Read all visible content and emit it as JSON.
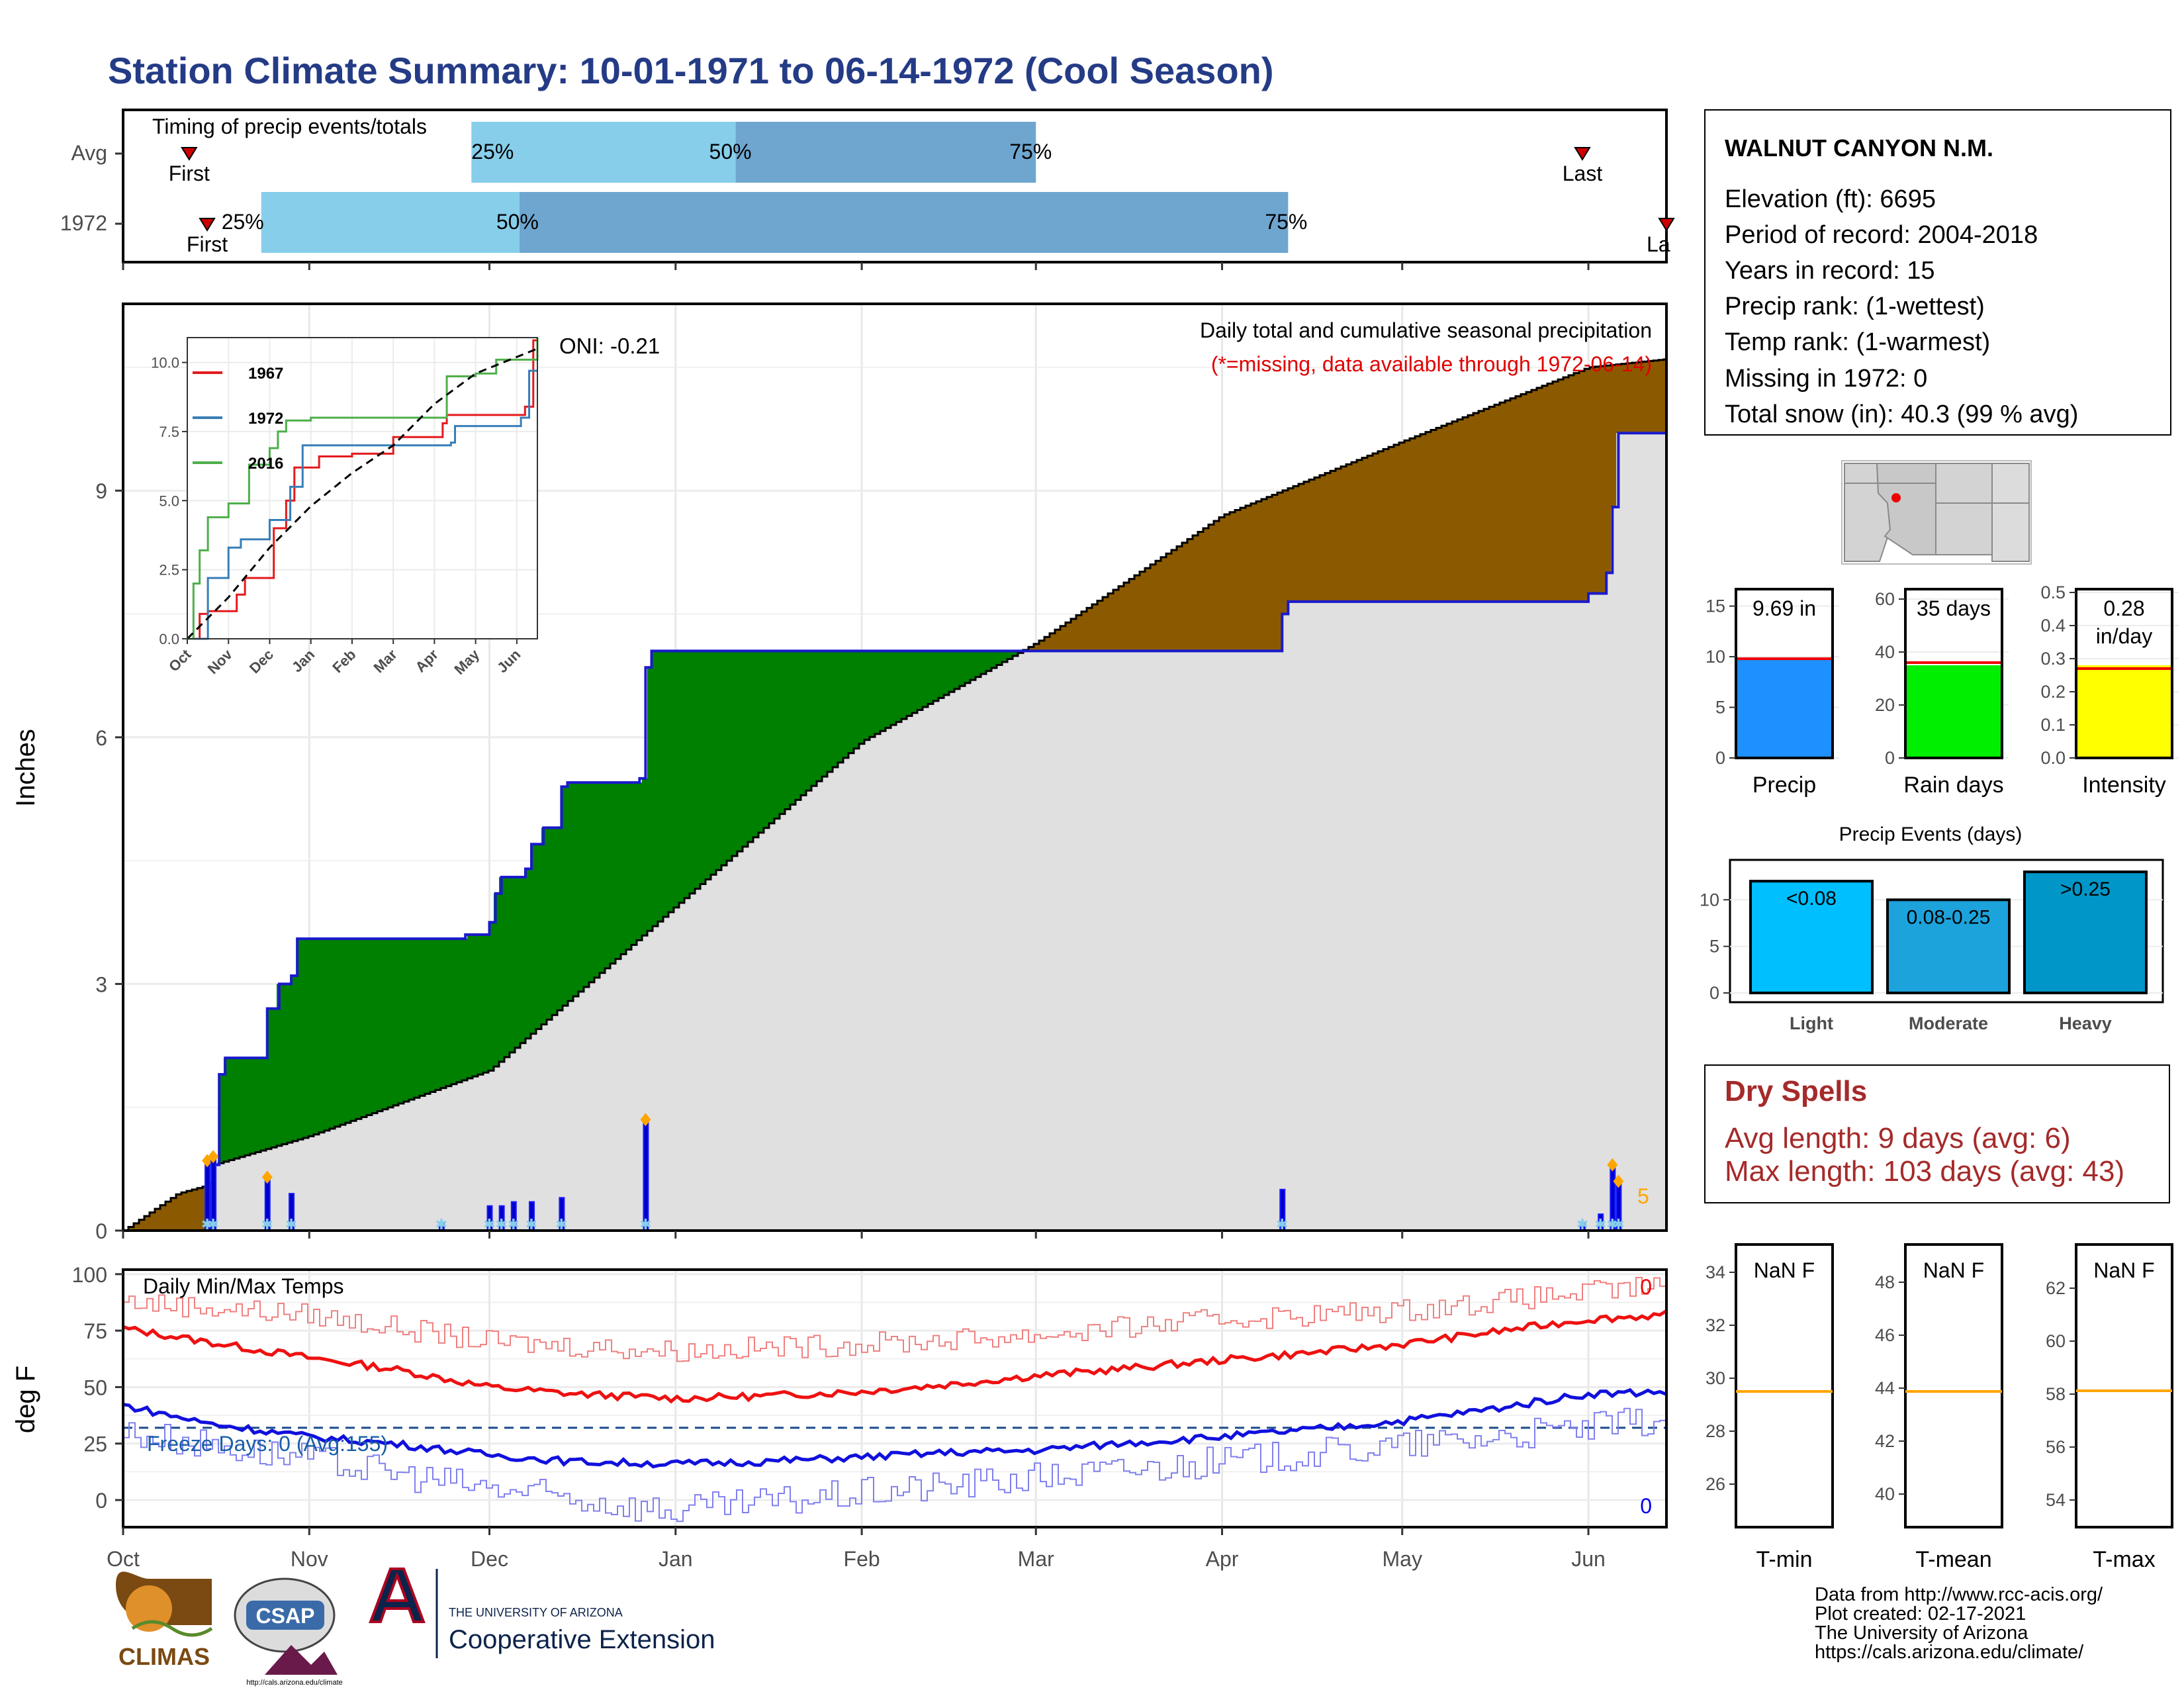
{
  "page": {
    "title": "Station Climate Summary: 10-01-1971 to 06-14-1972 (Cool Season)"
  },
  "timing": {
    "title": "Timing of precip events/totals",
    "rows": [
      {
        "label": "Avg",
        "first_date": "1971-10-12",
        "last_date": "1972-05-31",
        "p25": "1971-11-28",
        "p50": "1972-01-11",
        "p75": "1972-03-01"
      },
      {
        "label": "1972",
        "first_date": "1971-10-15",
        "last_date": "1972-06-14",
        "p25": "1971-10-24",
        "p50": "1971-12-06",
        "p75": "1972-04-12"
      }
    ],
    "first_label": "First",
    "last_label": "Last",
    "last_label_clipped": "La",
    "q_labels": [
      "25%",
      "50%",
      "75%"
    ],
    "colors": {
      "q1": "#87ceeb",
      "q2": "#6ea6cf",
      "marker": "#cc0000"
    }
  },
  "info": {
    "station": "WALNUT CANYON N.M.",
    "lines": [
      "Elevation (ft): 6695",
      "Period of record: 2004-2018",
      "Years in record: 15",
      "Precip rank:  (1-wettest)",
      "Temp rank:  (1-warmest)",
      "Missing in 1972: 0",
      "Total snow (in): 40.3 (99 % avg)"
    ]
  },
  "main_chart": {
    "ylabel": "Inches",
    "note": "Daily total and cumulative seasonal precipitation",
    "note_missing": "(*=missing, data available through 1972-06-14)",
    "oni": "ONI: -0.21",
    "badge": "5",
    "colors": {
      "above": "#008000",
      "below": "#8b5a00",
      "avg_fill": "#e0e0e0",
      "observed": "#1a1acc",
      "snow": "#87ceeb",
      "dot": "#ffa500"
    }
  },
  "inset": {
    "series": [
      {
        "name": "1967",
        "color": "#e41a1c"
      },
      {
        "name": "1972",
        "color": "#377eb8"
      },
      {
        "name": "2016",
        "color": "#4daf4a"
      }
    ],
    "yticks": [
      "0.0",
      "2.5",
      "5.0",
      "7.5",
      "10.0"
    ],
    "xticks": [
      "Oct",
      "Nov",
      "Dec",
      "Jan",
      "Feb",
      "Mar",
      "Apr",
      "May",
      "Jun"
    ]
  },
  "gauges": [
    {
      "label": "Precip",
      "value_text": "9.69 in",
      "color": "#1e90ff",
      "yticks": [
        "0",
        "5",
        "10",
        "15"
      ]
    },
    {
      "label": "Rain days",
      "value_text": "35 days",
      "color": "#00ee00",
      "yticks": [
        "0",
        "20",
        "40",
        "60"
      ]
    },
    {
      "label": "Intensity",
      "value_text": "0.28",
      "value_text2": "in/day",
      "color": "#ffff00",
      "yticks": [
        "0.0",
        "0.1",
        "0.2",
        "0.3",
        "0.4",
        "0.5"
      ]
    }
  ],
  "events": {
    "title": "Precip Events (days)",
    "bars": [
      {
        "label": "Light",
        "inner": "<0.08",
        "color": "#00bfff"
      },
      {
        "label": "Moderate",
        "inner": "0.08-0.25",
        "color": "#1ca3dc"
      },
      {
        "label": "Heavy",
        "inner": ">0.25",
        "color": "#0096c8"
      }
    ],
    "yticks": [
      "0",
      "5",
      "10"
    ]
  },
  "dry": {
    "title": "Dry Spells",
    "avg": "Avg length: 9 days (avg: 6)",
    "max": "Max length: 103 days (avg: 43)",
    "color": "#a52a2a"
  },
  "temp_chart": {
    "ylabel": "deg F",
    "title": "Daily Min/Max Temps",
    "freeze": "Freeze Days: 0 (Avg:155)",
    "count_top": "0",
    "count_bottom": "0",
    "yticks": [
      "0",
      "25",
      "50",
      "75",
      "100"
    ]
  },
  "xaxis": {
    "months": [
      "Oct",
      "Nov",
      "Dec",
      "Jan",
      "Feb",
      "Mar",
      "Apr",
      "May",
      "Jun"
    ]
  },
  "temp_boxes": [
    {
      "label": "T-min",
      "value_text": "NaN F",
      "yticks": [
        "26",
        "28",
        "30",
        "32",
        "34"
      ]
    },
    {
      "label": "T-mean",
      "value_text": "NaN F",
      "yticks": [
        "40",
        "42",
        "44",
        "46",
        "48"
      ]
    },
    {
      "label": "T-max",
      "value_text": "NaN F",
      "yticks": [
        "54",
        "56",
        "58",
        "60",
        "62"
      ]
    }
  ],
  "footer": {
    "lines": [
      "Data from http://www.rcc-acis.org/",
      "Plot created: 02-17-2021",
      "The University of Arizona",
      "https://cals.arizona.edu/climate/"
    ]
  },
  "logos": {
    "climas": "CLIMAS",
    "csap": "CSAP",
    "csap_url": "http://cals.arizona.edu/climate",
    "ua_line1": "THE UNIVERSITY OF ARIZONA",
    "ua_line2": "Cooperative Extension"
  },
  "chart_data": [
    {
      "type": "area",
      "title": "Daily total and cumulative seasonal precipitation",
      "ylabel": "Inches",
      "x_range": [
        "1971-10-01",
        "1972-06-14"
      ],
      "ylim": [
        0,
        11.3
      ],
      "yticks": [
        0,
        3,
        6,
        9
      ],
      "series": [
        {
          "name": "1972",
          "points": [
            [
              "1971-10-01",
              0.0
            ],
            [
              "1971-10-16",
              0.8
            ],
            [
              "1971-10-17",
              1.9
            ],
            [
              "1971-10-18",
              2.1
            ],
            [
              "1971-10-24",
              2.1
            ],
            [
              "1971-10-25",
              2.7
            ],
            [
              "1971-10-27",
              3.0
            ],
            [
              "1971-10-29",
              3.1
            ],
            [
              "1971-10-30",
              3.55
            ],
            [
              "1971-11-27",
              3.6
            ],
            [
              "1971-12-01",
              3.75
            ],
            [
              "1971-12-02",
              4.1
            ],
            [
              "1971-12-03",
              4.3
            ],
            [
              "1971-12-07",
              4.4
            ],
            [
              "1971-12-08",
              4.7
            ],
            [
              "1971-12-10",
              4.9
            ],
            [
              "1971-12-13",
              5.4
            ],
            [
              "1971-12-14",
              5.45
            ],
            [
              "1971-12-26",
              5.5
            ],
            [
              "1971-12-27",
              6.85
            ],
            [
              "1971-12-28",
              7.05
            ],
            [
              "1972-03-07",
              7.05
            ],
            [
              "1972-04-10",
              7.05
            ],
            [
              "1972-04-11",
              7.5
            ],
            [
              "1972-04-12",
              7.65
            ],
            [
              "1972-05-30",
              7.65
            ],
            [
              "1972-06-01",
              7.75
            ],
            [
              "1972-06-04",
              8.0
            ],
            [
              "1972-06-05",
              8.8
            ],
            [
              "1972-06-06",
              9.7
            ],
            [
              "1972-06-14",
              9.7
            ]
          ]
        },
        {
          "name": "Average",
          "points": [
            [
              "1971-10-01",
              0.0
            ],
            [
              "1971-10-05",
              0.2
            ],
            [
              "1971-10-10",
              0.45
            ],
            [
              "1971-10-15",
              0.55
            ],
            [
              "1971-10-16",
              0.8
            ],
            [
              "1971-11-01",
              1.15
            ],
            [
              "1971-12-01",
              1.95
            ],
            [
              "1972-01-01",
              3.95
            ],
            [
              "1972-02-01",
              5.95
            ],
            [
              "1972-03-01",
              7.15
            ],
            [
              "1972-04-01",
              8.7
            ],
            [
              "1972-05-01",
              9.6
            ],
            [
              "1972-06-01",
              10.5
            ],
            [
              "1972-06-14",
              10.6
            ]
          ]
        }
      ],
      "daily_precip": [
        {
          "date": "1971-10-15",
          "value": 0.85
        },
        {
          "date": "1971-10-16",
          "value": 0.9
        },
        {
          "date": "1971-10-25",
          "value": 0.65
        },
        {
          "date": "1971-10-29",
          "value": 0.45
        },
        {
          "date": "1971-11-23",
          "value": 0.1
        },
        {
          "date": "1971-12-01",
          "value": 0.3
        },
        {
          "date": "1971-12-03",
          "value": 0.3
        },
        {
          "date": "1971-12-05",
          "value": 0.35
        },
        {
          "date": "1971-12-08",
          "value": 0.35
        },
        {
          "date": "1971-12-13",
          "value": 0.4
        },
        {
          "date": "1971-12-27",
          "value": 1.35
        },
        {
          "date": "1972-04-11",
          "value": 0.5
        },
        {
          "date": "1972-05-31",
          "value": 0.1
        },
        {
          "date": "1972-06-03",
          "value": 0.2
        },
        {
          "date": "1972-06-05",
          "value": 0.8
        },
        {
          "date": "1972-06-06",
          "value": 0.6
        }
      ]
    },
    {
      "type": "line",
      "title": "",
      "xlabel": "",
      "ylabel": "",
      "ylim": [
        0,
        10.9
      ],
      "x_range": [
        "Oct",
        "Jun"
      ],
      "series": [
        {
          "name": "1967",
          "points": [
            [
              0,
              0
            ],
            [
              0.3,
              0.9
            ],
            [
              0.5,
              1.0
            ],
            [
              1.1,
              1.0
            ],
            [
              1.2,
              1.6
            ],
            [
              1.4,
              2.2
            ],
            [
              2.0,
              2.2
            ],
            [
              2.1,
              4.0
            ],
            [
              2.4,
              5.0
            ],
            [
              2.6,
              6.2
            ],
            [
              3.2,
              6.6
            ],
            [
              4.0,
              6.7
            ],
            [
              5.0,
              7.3
            ],
            [
              6.2,
              7.8
            ],
            [
              6.3,
              8.1
            ],
            [
              8.0,
              8.1
            ],
            [
              8.2,
              8.4
            ],
            [
              8.4,
              10.8
            ],
            [
              8.5,
              10.9
            ]
          ]
        },
        {
          "name": "1972",
          "points": [
            [
              0,
              0
            ],
            [
              0.5,
              2.2
            ],
            [
              1.0,
              3.3
            ],
            [
              1.3,
              3.6
            ],
            [
              2.0,
              4.3
            ],
            [
              2.5,
              5.5
            ],
            [
              2.8,
              7.0
            ],
            [
              5.0,
              7.0
            ],
            [
              6.4,
              7.1
            ],
            [
              6.5,
              7.7
            ],
            [
              8.0,
              7.7
            ],
            [
              8.1,
              8.0
            ],
            [
              8.3,
              9.7
            ],
            [
              8.5,
              9.7
            ]
          ]
        },
        {
          "name": "2016",
          "points": [
            [
              0,
              0
            ],
            [
              0.15,
              2.0
            ],
            [
              0.3,
              3.2
            ],
            [
              0.5,
              4.4
            ],
            [
              1.0,
              4.9
            ],
            [
              1.5,
              6.3
            ],
            [
              2.0,
              6.9
            ],
            [
              2.2,
              7.5
            ],
            [
              2.4,
              7.9
            ],
            [
              3.0,
              8.0
            ],
            [
              5.0,
              8.0
            ],
            [
              6.3,
              9.5
            ],
            [
              7.0,
              9.6
            ],
            [
              7.5,
              10.1
            ],
            [
              8.5,
              10.9
            ]
          ]
        },
        {
          "name": "Average",
          "points": [
            [
              0,
              0
            ],
            [
              1,
              1.5
            ],
            [
              2,
              3.3
            ],
            [
              3,
              4.8
            ],
            [
              4,
              6.0
            ],
            [
              5,
              7.0
            ],
            [
              6,
              8.5
            ],
            [
              7,
              9.6
            ],
            [
              8,
              10.2
            ],
            [
              8.5,
              10.5
            ]
          ]
        }
      ]
    },
    {
      "type": "line",
      "title": "Daily Min/Max Temps",
      "ylabel": "deg F",
      "ylim": [
        -12,
        102
      ],
      "yticks": [
        0,
        25,
        50,
        75,
        100
      ],
      "freeze_line": 32,
      "series": [
        {
          "name": "Avg max",
          "points": [
            [
              "1971-10-01",
              76
            ],
            [
              "1971-10-15",
              70
            ],
            [
              "1971-11-01",
              63
            ],
            [
              "1971-11-15",
              58
            ],
            [
              "1971-12-01",
              50
            ],
            [
              "1971-12-15",
              47
            ],
            [
              "1972-01-01",
              45
            ],
            [
              "1972-01-15",
              46
            ],
            [
              "1972-02-01",
              48
            ],
            [
              "1972-02-15",
              51
            ],
            [
              "1972-03-01",
              55
            ],
            [
              "1972-03-15",
              58
            ],
            [
              "1972-04-01",
              62
            ],
            [
              "1972-04-15",
              65
            ],
            [
              "1972-05-01",
              69
            ],
            [
              "1972-05-15",
              74
            ],
            [
              "1972-06-01",
              80
            ],
            [
              "1972-06-14",
              82
            ]
          ]
        },
        {
          "name": "Avg min",
          "points": [
            [
              "1971-10-01",
              42
            ],
            [
              "1971-10-15",
              34
            ],
            [
              "1971-11-01",
              28
            ],
            [
              "1971-11-15",
              25
            ],
            [
              "1971-12-01",
              20
            ],
            [
              "1971-12-15",
              17
            ],
            [
              "1972-01-01",
              16
            ],
            [
              "1972-01-15",
              17
            ],
            [
              "1972-02-01",
              19
            ],
            [
              "1972-02-15",
              21
            ],
            [
              "1972-03-01",
              22
            ],
            [
              "1972-03-15",
              25
            ],
            [
              "1972-04-01",
              28
            ],
            [
              "1972-04-15",
              31
            ],
            [
              "1972-05-01",
              35
            ],
            [
              "1972-05-15",
              40
            ],
            [
              "1972-06-01",
              47
            ],
            [
              "1972-06-14",
              48
            ]
          ]
        },
        {
          "name": "Record max",
          "points": [
            [
              "1971-10-01",
              88
            ],
            [
              "1971-11-01",
              82
            ],
            [
              "1971-12-01",
              70
            ],
            [
              "1972-01-01",
              66
            ],
            [
              "1972-02-01",
              69
            ],
            [
              "1972-03-01",
              73
            ],
            [
              "1972-04-01",
              80
            ],
            [
              "1972-05-01",
              84
            ],
            [
              "1972-06-01",
              92
            ],
            [
              "1972-06-14",
              95
            ]
          ]
        },
        {
          "name": "Record min",
          "points": [
            [
              "1971-10-01",
              30
            ],
            [
              "1971-11-01",
              18
            ],
            [
              "1971-12-01",
              5
            ],
            [
              "1972-01-01",
              -5
            ],
            [
              "1972-02-01",
              3
            ],
            [
              "1972-03-01",
              10
            ],
            [
              "1972-04-01",
              17
            ],
            [
              "1972-05-01",
              24
            ],
            [
              "1972-06-01",
              32
            ],
            [
              "1972-06-14",
              36
            ]
          ]
        }
      ]
    },
    {
      "type": "bar",
      "title": "",
      "categories": [
        "Precip",
        "Rain days",
        "Intensity"
      ],
      "values": [
        9.69,
        35,
        0.28
      ],
      "averages": [
        9.8,
        36,
        0.27
      ],
      "ylims": [
        [
          0,
          17
        ],
        [
          0,
          65
        ],
        [
          0,
          0.52
        ]
      ]
    },
    {
      "type": "bar",
      "title": "Precip Events (days)",
      "categories": [
        "Light",
        "Moderate",
        "Heavy"
      ],
      "values": [
        12,
        10,
        13
      ],
      "ylim": [
        0,
        14
      ]
    }
  ]
}
